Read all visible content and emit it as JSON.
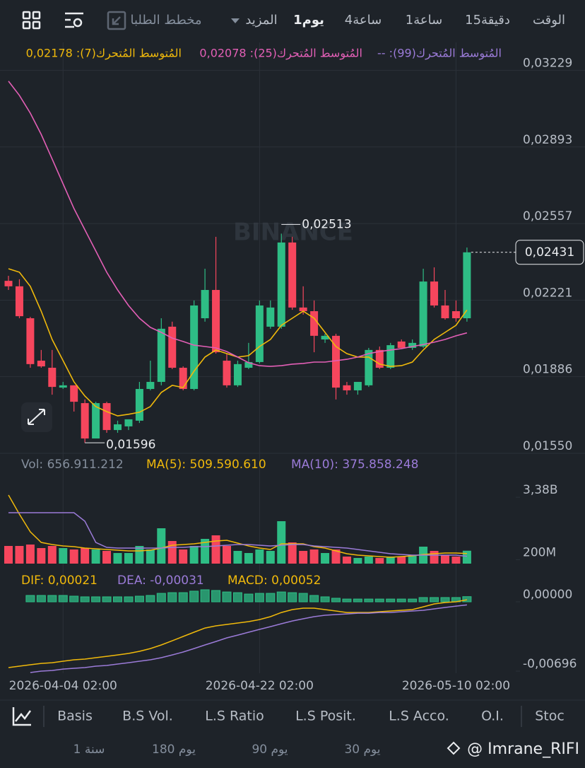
{
  "toolbar": {
    "tabs": [
      "الوقت",
      "15دقيقة",
      "1ساعة",
      "4ساعة",
      "1يوم",
      "المزيد",
      "مخطط الطلبا"
    ]
  },
  "chart_data": [
    {
      "type": "candlestick",
      "watermark": "BINANCE",
      "ma99_label": "-- :المُتوسط المُتحرك(99)",
      "categories": [
        null,
        null,
        null,
        null,
        null,
        "2026-04-04 02:00",
        null,
        null,
        null,
        null,
        null,
        null,
        null,
        null,
        null,
        null,
        null,
        null,
        null,
        null,
        null,
        null,
        null,
        "2026-04-22 02:00",
        null,
        null,
        null,
        null,
        null,
        null,
        null,
        null,
        null,
        null,
        null,
        null,
        null,
        null,
        null,
        null,
        null,
        "2026-05-10 02:00",
        null
      ],
      "open": [
        0.02306,
        0.02282,
        0.02142,
        0.01956,
        0.01925,
        0.01838,
        0.01848,
        0.0177,
        0.01615,
        0.0177,
        0.01652,
        0.01668,
        0.01693,
        0.01832,
        0.01863,
        0.02105,
        0.01925,
        0.01832,
        0.02142,
        0.02266,
        0.01956,
        0.01848,
        0.01925,
        0.0195,
        0.02105,
        0.02105,
        0.02474,
        0.02189,
        0.02173,
        0.02049,
        0.02065,
        0.01848,
        0.01826,
        0.01848,
        0.02003,
        0.01925,
        0.0204,
        0.02012,
        0.02018,
        0.02303,
        0.02198,
        0.02173,
        0.02142
      ],
      "high": [
        0.02328,
        0.02313,
        0.02148,
        0.02003,
        0.02003,
        0.01863,
        0.01848,
        0.01786,
        0.01776,
        0.01776,
        0.01693,
        0.01699,
        0.01863,
        0.01956,
        0.02142,
        0.02127,
        0.01931,
        0.0222,
        0.02359,
        0.02499,
        0.01987,
        0.01956,
        0.02034,
        0.0222,
        0.0222,
        0.02513,
        0.02499,
        0.02282,
        0.0222,
        0.02074,
        0.02074,
        0.01863,
        0.01863,
        0.02012,
        0.02018,
        0.02034,
        0.02049,
        0.02049,
        0.02359,
        0.02365,
        0.02266,
        0.0222,
        0.02452
      ],
      "low": [
        0.02266,
        0.02142,
        0.01925,
        0.01925,
        0.01807,
        0.01832,
        0.01733,
        0.01596,
        0.01615,
        0.0164,
        0.0164,
        0.01652,
        0.01683,
        0.01826,
        0.01848,
        0.01919,
        0.01826,
        0.01826,
        0.02127,
        0.01987,
        0.01838,
        0.01841,
        0.01919,
        0.01944,
        0.02096,
        0.02096,
        0.02179,
        0.02158,
        0.01993,
        0.02034,
        0.01786,
        0.01807,
        0.01807,
        0.01841,
        0.01919,
        0.01919,
        0.02012,
        0.02003,
        0.02012,
        0.02189,
        0.02136,
        0.02127,
        0.02127
      ],
      "close": [
        0.02282,
        0.02151,
        0.01941,
        0.01931,
        0.01841,
        0.01848,
        0.01776,
        0.01615,
        0.0177,
        0.01652,
        0.01677,
        0.01699,
        0.01832,
        0.01863,
        0.02096,
        0.01925,
        0.01832,
        0.02198,
        0.02266,
        0.01993,
        0.01848,
        0.01941,
        0.0195,
        0.02198,
        0.02189,
        0.02474,
        0.02189,
        0.02173,
        0.02065,
        0.02065,
        0.01838,
        0.01826,
        0.01863,
        0.02003,
        0.01925,
        0.02024,
        0.02012,
        0.02034,
        0.02303,
        0.02198,
        0.02142,
        0.02142,
        0.02431
      ],
      "up_color": "#2ebd85",
      "down_color": "#f6465d",
      "series": [
        {
          "name": "0,02178 :المُتوسط المُتحرك(7)",
          "color": "#f0b90b",
          "values": [
            0.02359,
            0.02344,
            0.02282,
            0.02173,
            0.02049,
            0.01956,
            0.01863,
            0.01801,
            0.01755,
            0.01733,
            0.01714,
            0.01721,
            0.0173,
            0.01755,
            0.01817,
            0.01848,
            0.01838,
            0.0191,
            0.01972,
            0.02003,
            0.01987,
            0.01972,
            0.01978,
            0.02018,
            0.02049,
            0.02111,
            0.02142,
            0.02173,
            0.02142,
            0.0208,
            0.02018,
            0.01987,
            0.01972,
            0.01972,
            0.01941,
            0.01931,
            0.01934,
            0.0195,
            0.02003,
            0.02049,
            0.0208,
            0.02111,
            0.02178
          ]
        },
        {
          "name": "0,02078 :المُتوسط المُتحرك(25)",
          "color": "#e35fb6",
          "values": [
            0.03181,
            0.03119,
            0.03041,
            0.02948,
            0.0284,
            0.02731,
            0.02623,
            0.0253,
            0.02437,
            0.02344,
            0.02266,
            0.02198,
            0.02142,
            0.02102,
            0.0208,
            0.02055,
            0.0204,
            0.02024,
            0.02018,
            0.02012,
            0.01996,
            0.01972,
            0.01947,
            0.01934,
            0.01931,
            0.01934,
            0.01941,
            0.01944,
            0.0195,
            0.0195,
            0.01956,
            0.01962,
            0.01972,
            0.01987,
            0.01996,
            0.02003,
            0.02009,
            0.02018,
            0.02027,
            0.02037,
            0.02049,
            0.02065,
            0.02078
          ]
        }
      ],
      "annotations": [
        "0,02513",
        "0,01596",
        "0,02431"
      ],
      "ylim": [
        0.0155,
        0.03351
      ],
      "yticks": [
        {
          "value": 0.03229,
          "label": "0,03229"
        },
        {
          "value": 0.02893,
          "label": "0,02893"
        },
        {
          "value": 0.02557,
          "label": "0,02557"
        },
        {
          "value": 0.02221,
          "label": "0,02221"
        },
        {
          "value": 0.01886,
          "label": "0,01886"
        },
        {
          "value": 0.0155,
          "label": "0,01550"
        }
      ],
      "grid": true
    },
    {
      "type": "bar",
      "label": "Vol: 656.911.212",
      "values": [
        900000000,
        900000000,
        972000000,
        792000000,
        900000000,
        792000000,
        720000000,
        792000000,
        720000000,
        648000000,
        540000000,
        540000000,
        900000000,
        720000000,
        1800000000,
        1152000000,
        720000000,
        900000000,
        1260000000,
        1440000000,
        900000000,
        648000000,
        540000000,
        720000000,
        648000000,
        2160000000,
        1080000000,
        648000000,
        720000000,
        540000000,
        720000000,
        360000000,
        288000000,
        360000000,
        288000000,
        360000000,
        360000000,
        432000000,
        864000000,
        648000000,
        432000000,
        360000000,
        656911212
      ],
      "series": [
        {
          "name": "MA(5): 509.590.610",
          "color": "#f0b90b",
          "values": [
            3492000000,
            2520000000,
            1620000000,
            1080000000,
            972000000,
            900000000,
            864000000,
            792000000,
            756000000,
            720000000,
            684000000,
            648000000,
            648000000,
            684000000,
            792000000,
            936000000,
            972000000,
            1008000000,
            1080000000,
            1152000000,
            1188000000,
            1044000000,
            900000000,
            792000000,
            720000000,
            1008000000,
            1008000000,
            1008000000,
            864000000,
            792000000,
            648000000,
            504000000,
            432000000,
            396000000,
            360000000,
            324000000,
            360000000,
            396000000,
            468000000,
            504000000,
            540000000,
            540000000,
            509590610
          ]
        },
        {
          "name": "MA(10): 375.858.248",
          "color": "#9b7bd8",
          "values": [
            2592000000,
            2592000000,
            2592000000,
            2592000000,
            2592000000,
            2592000000,
            2592000000,
            2160000000,
            1080000000,
            828000000,
            792000000,
            792000000,
            792000000,
            792000000,
            792000000,
            828000000,
            828000000,
            864000000,
            864000000,
            900000000,
            936000000,
            972000000,
            972000000,
            936000000,
            900000000,
            936000000,
            972000000,
            972000000,
            900000000,
            864000000,
            828000000,
            792000000,
            720000000,
            648000000,
            576000000,
            504000000,
            468000000,
            432000000,
            432000000,
            432000000,
            432000000,
            432000000,
            375858248
          ]
        }
      ],
      "ylim": [
        0,
        4500000000
      ],
      "yticks": [
        {
          "value": 3380000000,
          "label": "3,38B"
        },
        {
          "value": 200000000,
          "label": "200M"
        }
      ]
    },
    {
      "type": "macd",
      "label": "MACD: 0,00052",
      "color": "#2ebd85",
      "values": [
        null,
        null,
        0.00064,
        0.00064,
        0.00064,
        0.00064,
        0.00057,
        0.0005,
        0.0005,
        0.0005,
        0.0005,
        0.0005,
        0.00057,
        0.00064,
        0.00085,
        0.00092,
        0.00092,
        0.00107,
        0.00121,
        0.00114,
        0.00099,
        0.00092,
        0.00078,
        0.00085,
        0.00085,
        0.00099,
        0.00092,
        0.00085,
        0.00064,
        0.0005,
        0.00036,
        0.00028,
        0.00028,
        0.00028,
        0.00028,
        0.00028,
        0.00028,
        0.00028,
        0.00043,
        0.00043,
        0.00043,
        0.00043,
        0.00052
      ],
      "series": [
        {
          "name": "DIF: 0,00021",
          "color": "#f0b90b",
          "values": [
            -0.0066,
            -0.00646,
            -0.00632,
            -0.00618,
            -0.00611,
            -0.00596,
            -0.00582,
            -0.00575,
            -0.00561,
            -0.00547,
            -0.00533,
            -0.00518,
            -0.00497,
            -0.00469,
            -0.00433,
            -0.00391,
            -0.00348,
            -0.00305,
            -0.00263,
            -0.00241,
            -0.00227,
            -0.00213,
            -0.00199,
            -0.00178,
            -0.00149,
            -0.00107,
            -0.00078,
            -0.00064,
            -0.00064,
            -0.00078,
            -0.00092,
            -0.00107,
            -0.00107,
            -0.00107,
            -0.00099,
            -0.00092,
            -0.00085,
            -0.00078,
            -0.0005,
            -0.00021,
            -7e-05,
            0,
            0.00021
          ]
        },
        {
          "name": "DEA: -0,00031",
          "color": "#9b7bd8",
          "values": [
            null,
            null,
            -0.0071,
            -0.00696,
            -0.00689,
            -0.00675,
            -0.00667,
            -0.0066,
            -0.00646,
            -0.00639,
            -0.00625,
            -0.00611,
            -0.00596,
            -0.00582,
            -0.00561,
            -0.00533,
            -0.00504,
            -0.00469,
            -0.00433,
            -0.00398,
            -0.00362,
            -0.00334,
            -0.00305,
            -0.00277,
            -0.00249,
            -0.0022,
            -0.00192,
            -0.0017,
            -0.00149,
            -0.00135,
            -0.00128,
            -0.00121,
            -0.00114,
            -0.00114,
            -0.00107,
            -0.00107,
            -0.00099,
            -0.00092,
            -0.00085,
            -0.00071,
            -0.00057,
            -0.00043,
            -0.00031
          ]
        }
      ],
      "ylim": [
        -0.00717,
        0.00277
      ],
      "yticks": [
        {
          "value": 0,
          "label": "0,00000"
        },
        {
          "value": -0.00696,
          "label": "-0,00696"
        }
      ]
    }
  ],
  "indicator_tabs": [
    "Basis",
    "B.S Vol.",
    "L.S Ratio",
    "L.S Posit.",
    "L.S Acco.",
    "O.I.",
    "Stoc"
  ],
  "ranges": [
    "1 سنة",
    "180 يوم",
    "90 يوم",
    "30 يوم"
  ],
  "watermark": "@ Imrane_RIFI"
}
